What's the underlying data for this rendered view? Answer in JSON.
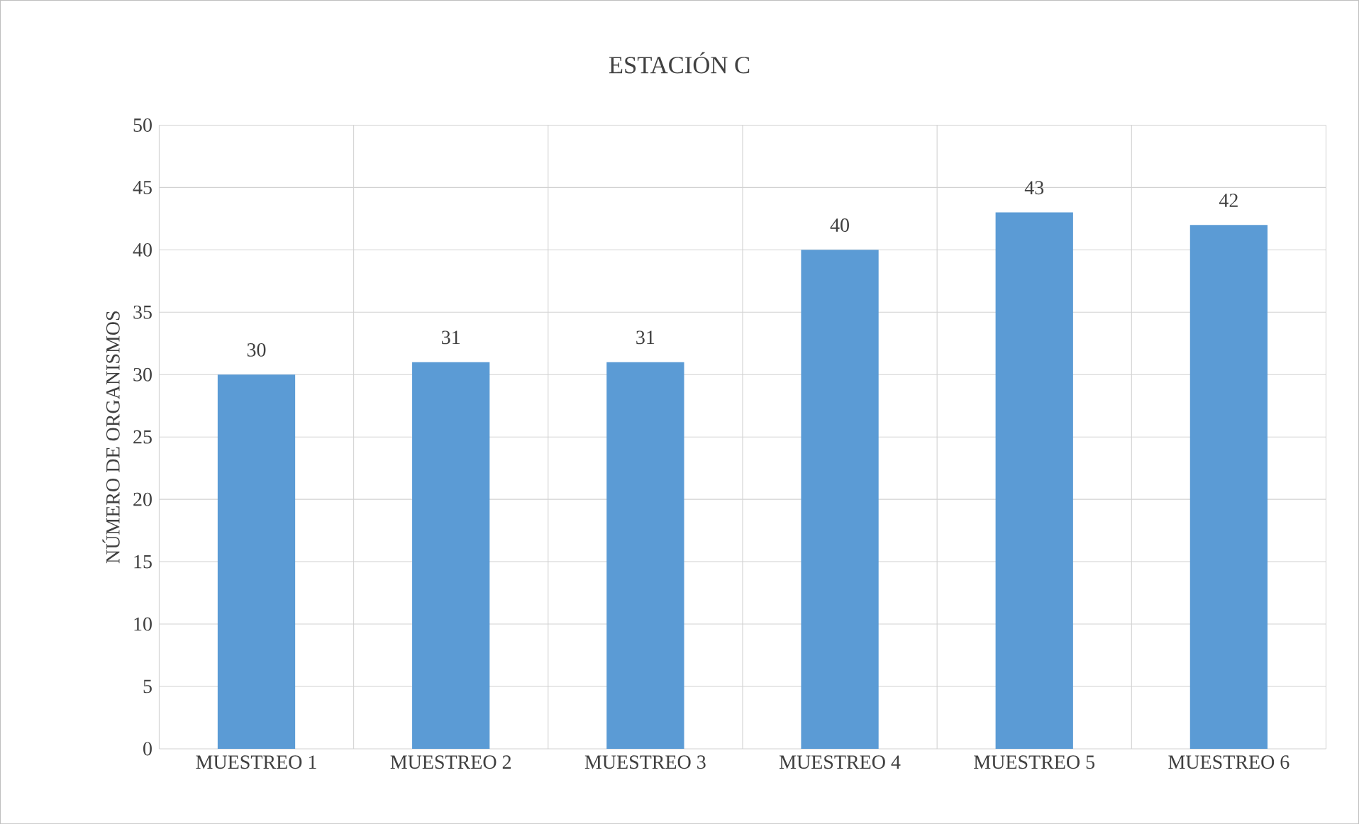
{
  "chart_data": {
    "type": "bar",
    "title": "ESTACIÓN C",
    "ylabel": "NÚMERO DE ORGANISMOS",
    "categories": [
      "MUESTREO 1",
      "MUESTREO 2",
      "MUESTREO 3",
      "MUESTREO 4",
      "MUESTREO 5",
      "MUESTREO 6"
    ],
    "values": [
      30,
      31,
      31,
      40,
      43,
      42
    ],
    "color": "#5b9bd5",
    "ylim": [
      0,
      50
    ],
    "yticks": [
      0,
      5,
      10,
      15,
      20,
      25,
      30,
      35,
      40,
      45,
      50
    ],
    "grid": true,
    "data_labels": true
  }
}
